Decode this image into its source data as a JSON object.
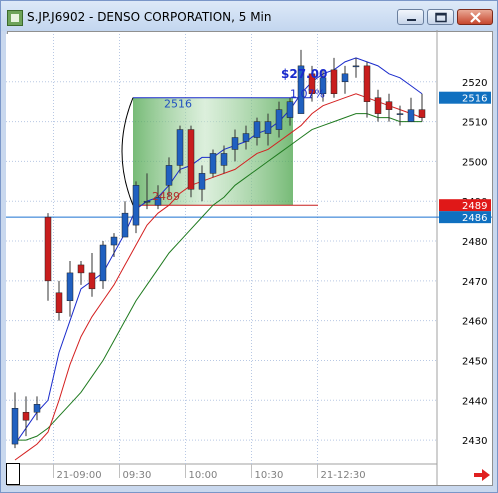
{
  "window": {
    "title": "S.JP.J6902 - DENSO CORPORATION, 5 Min",
    "minimize_label": "minimize",
    "maximize_label": "maximize",
    "close_label": "close"
  },
  "chart_data": {
    "type": "candlestick",
    "title": "S.JP.J6902 - DENSO CORPORATION, 5 Min",
    "ylim": [
      2424,
      2532
    ],
    "y_ticks": [
      2430,
      2440,
      2450,
      2460,
      2470,
      2480,
      2490,
      2500,
      2510,
      2520
    ],
    "x_tick_labels": [
      "21-09:00",
      "09:30",
      "10:00",
      "10:30",
      "21-12:30"
    ],
    "x_tick_bars": [
      4,
      10,
      16,
      22,
      28
    ],
    "colors": {
      "up": "#2060c0",
      "down": "#c81e1e",
      "ma_fast": "#1a2bcc",
      "ma_mid": "#d42020",
      "ma_slow": "#1f7a1f",
      "hline": "#1a70d0",
      "zone": "#66bb66"
    },
    "candles": [
      {
        "o": 2429,
        "h": 2442,
        "l": 2428,
        "c": 2438
      },
      {
        "o": 2437,
        "h": 2441,
        "l": 2431,
        "c": 2435
      },
      {
        "o": 2437,
        "h": 2441,
        "l": 2435,
        "c": 2439
      },
      {
        "o": 2486,
        "h": 2487,
        "l": 2465,
        "c": 2470
      },
      {
        "o": 2467,
        "h": 2470,
        "l": 2460,
        "c": 2462
      },
      {
        "o": 2465,
        "h": 2475,
        "l": 2461,
        "c": 2472
      },
      {
        "o": 2474,
        "h": 2475,
        "l": 2469,
        "c": 2472
      },
      {
        "o": 2472,
        "h": 2477,
        "l": 2466,
        "c": 2468
      },
      {
        "o": 2470,
        "h": 2480,
        "l": 2468,
        "c": 2479
      },
      {
        "o": 2479,
        "h": 2482,
        "l": 2476,
        "c": 2481
      },
      {
        "o": 2481,
        "h": 2490,
        "l": 2481,
        "c": 2487
      },
      {
        "o": 2484,
        "h": 2495,
        "l": 2482,
        "c": 2494
      },
      {
        "o": 2490,
        "h": 2497,
        "l": 2488,
        "c": 2490
      },
      {
        "o": 2489,
        "h": 2494,
        "l": 2488,
        "c": 2491
      },
      {
        "o": 2494,
        "h": 2501,
        "l": 2491,
        "c": 2499
      },
      {
        "o": 2499,
        "h": 2509,
        "l": 2497,
        "c": 2508
      },
      {
        "o": 2508,
        "h": 2509,
        "l": 2491,
        "c": 2493
      },
      {
        "o": 2493,
        "h": 2499,
        "l": 2490,
        "c": 2497
      },
      {
        "o": 2497,
        "h": 2503,
        "l": 2496,
        "c": 2502
      },
      {
        "o": 2499,
        "h": 2504,
        "l": 2497,
        "c": 2502
      },
      {
        "o": 2503,
        "h": 2508,
        "l": 2500,
        "c": 2506
      },
      {
        "o": 2505,
        "h": 2509,
        "l": 2503,
        "c": 2507
      },
      {
        "o": 2506,
        "h": 2511,
        "l": 2504,
        "c": 2510
      },
      {
        "o": 2507,
        "h": 2512,
        "l": 2504,
        "c": 2510
      },
      {
        "o": 2508,
        "h": 2515,
        "l": 2506,
        "c": 2513
      },
      {
        "o": 2511,
        "h": 2516,
        "l": 2509,
        "c": 2515
      },
      {
        "o": 2512,
        "h": 2528,
        "l": 2512,
        "c": 2524
      },
      {
        "o": 2522,
        "h": 2524,
        "l": 2515,
        "c": 2517
      },
      {
        "o": 2517,
        "h": 2523,
        "l": 2515,
        "c": 2521
      },
      {
        "o": 2523,
        "h": 2526,
        "l": 2516,
        "c": 2517
      },
      {
        "o": 2520,
        "h": 2524,
        "l": 2517,
        "c": 2522
      },
      {
        "o": 2524,
        "h": 2526,
        "l": 2521,
        "c": 2524
      },
      {
        "o": 2524,
        "h": 2525,
        "l": 2511,
        "c": 2515
      },
      {
        "o": 2516,
        "h": 2518,
        "l": 2510,
        "c": 2512
      },
      {
        "o": 2515,
        "h": 2517,
        "l": 2510,
        "c": 2513
      },
      {
        "o": 2512,
        "h": 2514,
        "l": 2509,
        "c": 2512
      },
      {
        "o": 2510,
        "h": 2516,
        "l": 2510,
        "c": 2513
      },
      {
        "o": 2513,
        "h": 2517,
        "l": 2510,
        "c": 2511
      }
    ],
    "ma_fast": [
      2429,
      2433,
      2437,
      2440,
      2452,
      2460,
      2468,
      2470,
      2472,
      2477,
      2482,
      2488,
      2490,
      2491,
      2494,
      2498,
      2499,
      2501,
      2501,
      2503,
      2504,
      2505,
      2507,
      2508,
      2510,
      2513,
      2517,
      2520,
      2522,
      2523,
      2525,
      2526,
      2525,
      2524,
      2522,
      2521,
      2519,
      2517
    ],
    "ma_mid": [
      2425,
      2427,
      2429,
      2432,
      2440,
      2449,
      2456,
      2461,
      2465,
      2469,
      2474,
      2479,
      2484,
      2487,
      2489,
      2492,
      2494,
      2495,
      2496,
      2497,
      2498,
      2500,
      2502,
      2503,
      2505,
      2507,
      2509,
      2512,
      2514,
      2515,
      2516,
      2517,
      2516,
      2515,
      2514,
      2513,
      2512,
      2511
    ],
    "ma_slow": [
      2430,
      2430,
      2431,
      2433,
      2436,
      2439,
      2442,
      2446,
      2450,
      2455,
      2460,
      2465,
      2469,
      2473,
      2477,
      2480,
      2483,
      2486,
      2489,
      2491,
      2494,
      2496,
      2498,
      2500,
      2502,
      2504,
      2506,
      2508,
      2509,
      2510,
      2511,
      2512,
      2512,
      2511,
      2511,
      2510,
      2510,
      2510
    ],
    "hline": 2486,
    "zone": {
      "top": 2516,
      "bottom": 2489,
      "from_bar": 11,
      "to_bar": 25,
      "line_to_bar": 27
    },
    "zone_top_label": "2516",
    "zone_bottom_label": "2489",
    "profit_label": "$27.00",
    "pct_label": "1.07%",
    "price_tags": [
      {
        "text": "2516",
        "value": 2516,
        "bg": "#1070c0"
      },
      {
        "text": "2489",
        "value": 2489,
        "bg": "#e01818"
      },
      {
        "text": "2486",
        "value": 2486,
        "bg": "#1070c0"
      }
    ]
  }
}
